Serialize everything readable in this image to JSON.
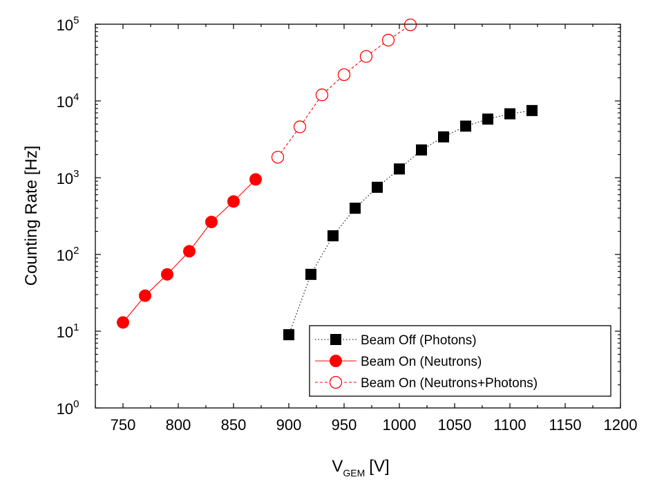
{
  "chart_data": {
    "type": "line",
    "title": "",
    "xlabel": {
      "main": "V",
      "subscript": "GEM",
      "unit": "[V]"
    },
    "ylabel": "Counting Rate [Hz]",
    "xlim": [
      725,
      1200
    ],
    "ylim": [
      1,
      100000
    ],
    "yscale": "log",
    "grid": false,
    "legend_position": "bottom-right",
    "x_ticks": [
      {
        "value": 750,
        "label": "750"
      },
      {
        "value": 800,
        "label": "800"
      },
      {
        "value": 850,
        "label": "850"
      },
      {
        "value": 900,
        "label": "900"
      },
      {
        "value": 950,
        "label": "950"
      },
      {
        "value": 1000,
        "label": "1000"
      },
      {
        "value": 1050,
        "label": "1050"
      },
      {
        "value": 1100,
        "label": "1100"
      },
      {
        "value": 1150,
        "label": "1150"
      },
      {
        "value": 1200,
        "label": "1200"
      }
    ],
    "y_ticks": [
      {
        "value": 1,
        "base": "10",
        "exp": "0"
      },
      {
        "value": 10,
        "base": "10",
        "exp": "1"
      },
      {
        "value": 100,
        "base": "10",
        "exp": "2"
      },
      {
        "value": 1000,
        "base": "10",
        "exp": "3"
      },
      {
        "value": 10000,
        "base": "10",
        "exp": "4"
      },
      {
        "value": 100000,
        "base": "10",
        "exp": "5"
      }
    ],
    "series": [
      {
        "name": "Beam Off (Photons)",
        "color": "#000000",
        "marker": "square-filled",
        "line_style": "dotted",
        "x": [
          900,
          920,
          940,
          960,
          980,
          1000,
          1020,
          1040,
          1060,
          1080,
          1100,
          1120
        ],
        "y": [
          9,
          55,
          175,
          400,
          750,
          1300,
          2300,
          3400,
          4700,
          5800,
          6800,
          7500
        ]
      },
      {
        "name": "Beam On (Neutrons)",
        "color": "#ff0000",
        "marker": "circle-filled",
        "line_style": "solid",
        "x": [
          750,
          770,
          790,
          810,
          830,
          850,
          870
        ],
        "y": [
          13,
          29,
          55,
          110,
          265,
          490,
          950
        ]
      },
      {
        "name": "Beam On (Neutrons+Photons)",
        "color": "#ff0000",
        "marker": "circle-open",
        "line_style": "dashed",
        "x": [
          890,
          910,
          930,
          950,
          970,
          990,
          1010
        ],
        "y": [
          1850,
          4600,
          12000,
          22000,
          38000,
          62000,
          98000
        ]
      }
    ]
  }
}
